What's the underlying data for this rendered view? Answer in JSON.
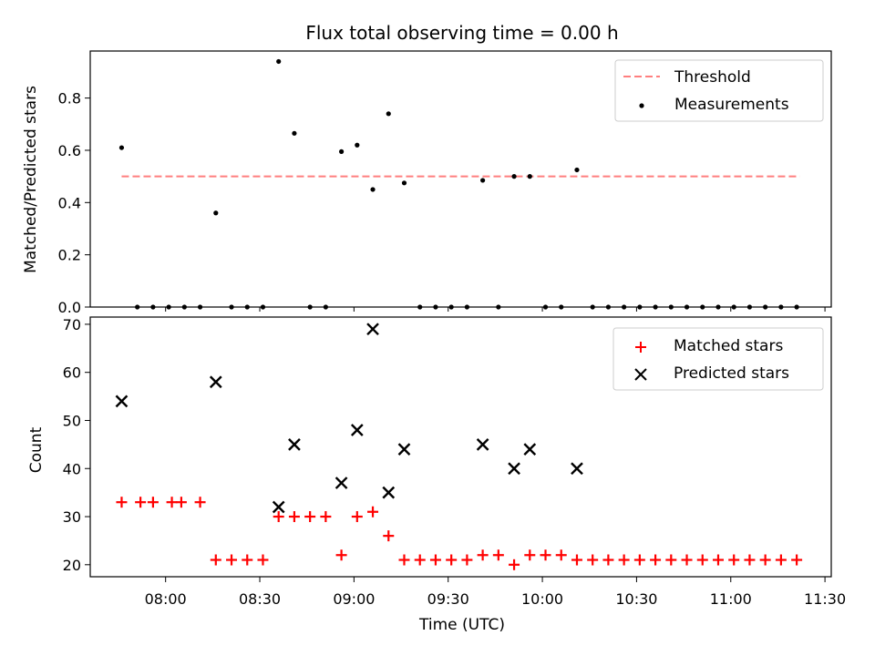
{
  "chart_data": [
    {
      "type": "scatter",
      "title": "Flux total observing time = 0.00 h",
      "xlabel": "",
      "ylabel": "Matched/Predicted stars",
      "ylim": [
        0,
        0.98
      ],
      "xlim": [
        "07:36",
        "11:32"
      ],
      "y_ticks": [
        "0.0",
        "0.2",
        "0.4",
        "0.6",
        "0.8"
      ],
      "threshold": {
        "name": "Threshold",
        "value": 0.5,
        "color": "#ff7f7f",
        "style": "dashed",
        "x_start": "07:46",
        "x_end": "11:22"
      },
      "series": [
        {
          "name": "Measurements",
          "color": "#000000",
          "marker": "dot",
          "x": [
            "07:46",
            "07:51",
            "07:56",
            "08:01",
            "08:06",
            "08:11",
            "08:16",
            "08:21",
            "08:26",
            "08:31",
            "08:36",
            "08:41",
            "08:46",
            "08:51",
            "08:56",
            "09:01",
            "09:06",
            "09:11",
            "09:16",
            "09:21",
            "09:26",
            "09:31",
            "09:36",
            "09:41",
            "09:46",
            "09:51",
            "09:56",
            "10:01",
            "10:06",
            "10:11",
            "10:16",
            "10:21",
            "10:26",
            "10:31",
            "10:36",
            "10:41",
            "10:46",
            "10:51",
            "10:56",
            "11:01",
            "11:06",
            "11:11",
            "11:16",
            "11:21"
          ],
          "y": [
            0.61,
            0,
            0,
            0,
            0,
            0,
            0.36,
            0,
            0,
            0,
            0.94,
            0.665,
            0,
            0,
            0.595,
            0.62,
            0.45,
            0.74,
            0.475,
            0,
            0,
            0,
            0,
            0.485,
            0,
            0.5,
            0.5,
            0,
            0,
            0.525,
            0,
            0,
            0,
            0,
            0,
            0,
            0,
            0,
            0,
            0,
            0,
            0,
            0,
            0
          ]
        }
      ],
      "legend_position": "top-right"
    },
    {
      "type": "scatter",
      "title": "",
      "xlabel": "Time (UTC)",
      "ylabel": "Count",
      "ylim": [
        17.5,
        71.5
      ],
      "y_ticks": [
        "20",
        "30",
        "40",
        "50",
        "60",
        "70"
      ],
      "x_ticks": [
        "08:00",
        "08:30",
        "09:00",
        "09:30",
        "10:00",
        "10:30",
        "11:00",
        "11:30"
      ],
      "series": [
        {
          "name": "Matched stars",
          "color": "#ff0000",
          "marker": "plus",
          "x": [
            "07:46",
            "07:52",
            "07:56",
            "08:02",
            "08:05",
            "08:11",
            "08:16",
            "08:21",
            "08:26",
            "08:31",
            "08:36",
            "08:41",
            "08:46",
            "08:51",
            "08:56",
            "09:01",
            "09:06",
            "09:11",
            "09:16",
            "09:21",
            "09:26",
            "09:31",
            "09:36",
            "09:41",
            "09:46",
            "09:51",
            "09:56",
            "10:01",
            "10:06",
            "10:11",
            "10:16",
            "10:21",
            "10:26",
            "10:31",
            "10:36",
            "10:41",
            "10:46",
            "10:51",
            "10:56",
            "11:01",
            "11:06",
            "11:11",
            "11:16",
            "11:21"
          ],
          "y": [
            33,
            33,
            33,
            33,
            33,
            33,
            21,
            21,
            21,
            21,
            30,
            30,
            30,
            30,
            22,
            30,
            31,
            26,
            21,
            21,
            21,
            21,
            21,
            22,
            22,
            20,
            22,
            22,
            22,
            21,
            21,
            21,
            21,
            21,
            21,
            21,
            21,
            21,
            21,
            21,
            21,
            21,
            21,
            21
          ]
        },
        {
          "name": "Predicted stars",
          "color": "#000000",
          "marker": "x",
          "x": [
            "07:46",
            "08:16",
            "08:36",
            "08:41",
            "08:56",
            "09:01",
            "09:06",
            "09:11",
            "09:16",
            "09:41",
            "09:51",
            "09:56",
            "10:11"
          ],
          "y": [
            54,
            58,
            32,
            45,
            37,
            48,
            69,
            35,
            44,
            45,
            40,
            44,
            40
          ]
        }
      ],
      "legend_position": "top-right"
    }
  ]
}
